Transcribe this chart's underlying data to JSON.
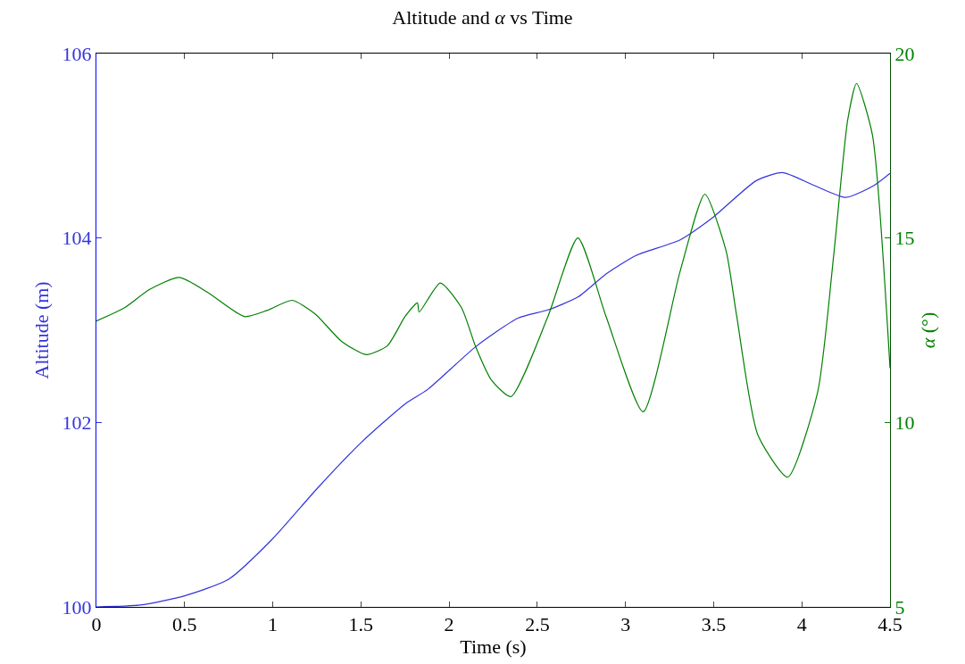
{
  "chart_data": {
    "type": "line",
    "title": "Altitude and α vs Time",
    "xlabel": "Time (s)",
    "ylabel": "Altitude (m)",
    "y2label": "α (°)",
    "xlim": [
      0,
      4.5
    ],
    "xticks": [
      0,
      0.5,
      1,
      1.5,
      2,
      2.5,
      3,
      3.5,
      4,
      4.5
    ],
    "ylim": [
      100,
      106
    ],
    "yticks": [
      100,
      102,
      104,
      106
    ],
    "y2lim": [
      5,
      20
    ],
    "y2ticks": [
      5,
      10,
      15,
      20
    ],
    "grid": false,
    "marker": "none",
    "line_style": "solid",
    "series": [
      {
        "color": "#3333dd",
        "x": [
          0,
          0.25,
          0.5,
          0.75,
          1,
          1.25,
          1.5,
          1.75,
          1.88,
          2.15,
          2.39,
          2.56,
          2.73,
          2.89,
          3.06,
          3.31,
          3.5,
          3.74,
          3.89,
          4.07,
          4.25,
          4.41,
          4.5
        ],
        "values": [
          100,
          100.02,
          100.12,
          100.3,
          100.74,
          101.28,
          101.78,
          102.2,
          102.36,
          102.82,
          103.13,
          103.22,
          103.36,
          103.61,
          103.81,
          103.98,
          104.23,
          104.62,
          104.71,
          104.57,
          104.44,
          104.57,
          104.7
        ]
      },
      {
        "color": "#008000",
        "axis": "y2",
        "x": [
          0,
          0.16,
          0.3,
          0.47,
          0.63,
          0.84,
          0.97,
          1.11,
          1.24,
          1.39,
          1.53,
          1.65,
          1.75,
          1.82,
          1.83,
          1.95,
          2.07,
          2.15,
          2.24,
          2.35,
          2.56,
          2.73,
          2.89,
          3.1,
          3.31,
          3.45,
          3.57,
          3.63,
          3.75,
          3.92,
          4.09,
          4.18,
          4.26,
          4.31,
          4.4,
          4.5
        ],
        "values": [
          12.75,
          13.11,
          13.6,
          13.93,
          13.53,
          12.87,
          13.04,
          13.31,
          12.94,
          12.2,
          11.84,
          12.08,
          12.87,
          13.24,
          12.99,
          13.78,
          13.11,
          12.06,
          11.15,
          10.7,
          12.87,
          15,
          12.87,
          10.29,
          14.1,
          16.19,
          14.66,
          12.9,
          9.67,
          8.52,
          10.83,
          14.5,
          18.2,
          19.19,
          17.8,
          11.47
        ]
      }
    ]
  }
}
